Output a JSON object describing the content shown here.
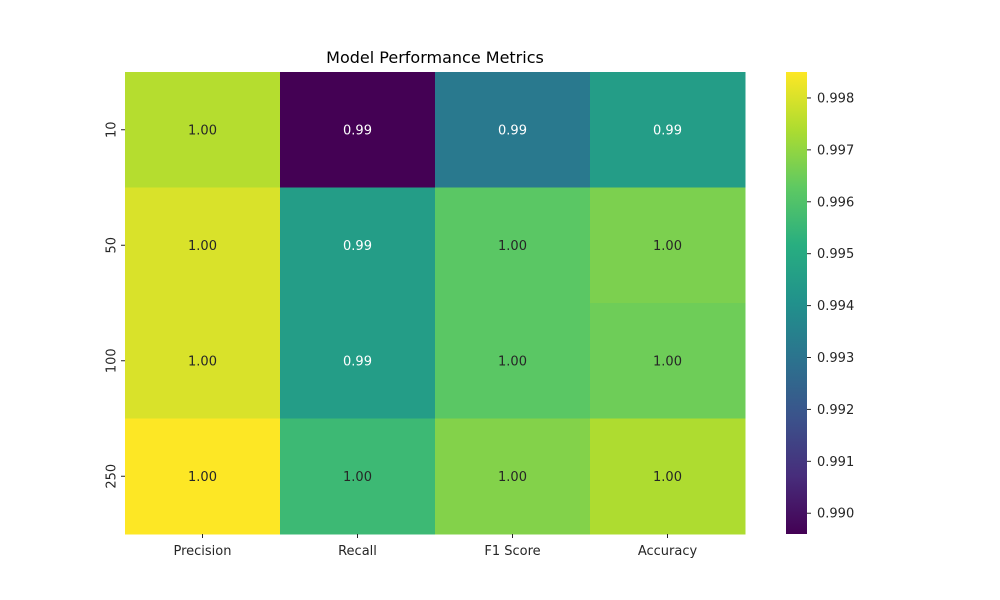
{
  "chart_data": {
    "type": "heatmap",
    "title": "Model Performance Metrics",
    "xlabel": "",
    "ylabel": "",
    "x_categories": [
      "Precision",
      "Recall",
      "F1 Score",
      "Accuracy"
    ],
    "y_categories": [
      "10",
      "50",
      "100",
      "250"
    ],
    "values": [
      [
        0.9975,
        0.9896,
        0.9932,
        0.9945
      ],
      [
        0.998,
        0.9945,
        0.9962,
        0.9967
      ],
      [
        0.998,
        0.9945,
        0.9962,
        0.9965
      ],
      [
        0.9985,
        0.9956,
        0.9968,
        0.9974
      ]
    ],
    "annotations": [
      [
        "1.00",
        "0.99",
        "0.99",
        "0.99"
      ],
      [
        "1.00",
        "0.99",
        "1.00",
        "1.00"
      ],
      [
        "1.00",
        "0.99",
        "1.00",
        "1.00"
      ],
      [
        "1.00",
        "1.00",
        "1.00",
        "1.00"
      ]
    ],
    "colormap": "viridis",
    "vmin": 0.9896,
    "vmax": 0.9985,
    "colorbar_ticks": [
      "0.990",
      "0.991",
      "0.992",
      "0.993",
      "0.994",
      "0.995",
      "0.996",
      "0.997",
      "0.998"
    ],
    "colorbar_tick_values": [
      0.99,
      0.991,
      0.992,
      0.993,
      0.994,
      0.995,
      0.996,
      0.997,
      0.998
    ]
  }
}
